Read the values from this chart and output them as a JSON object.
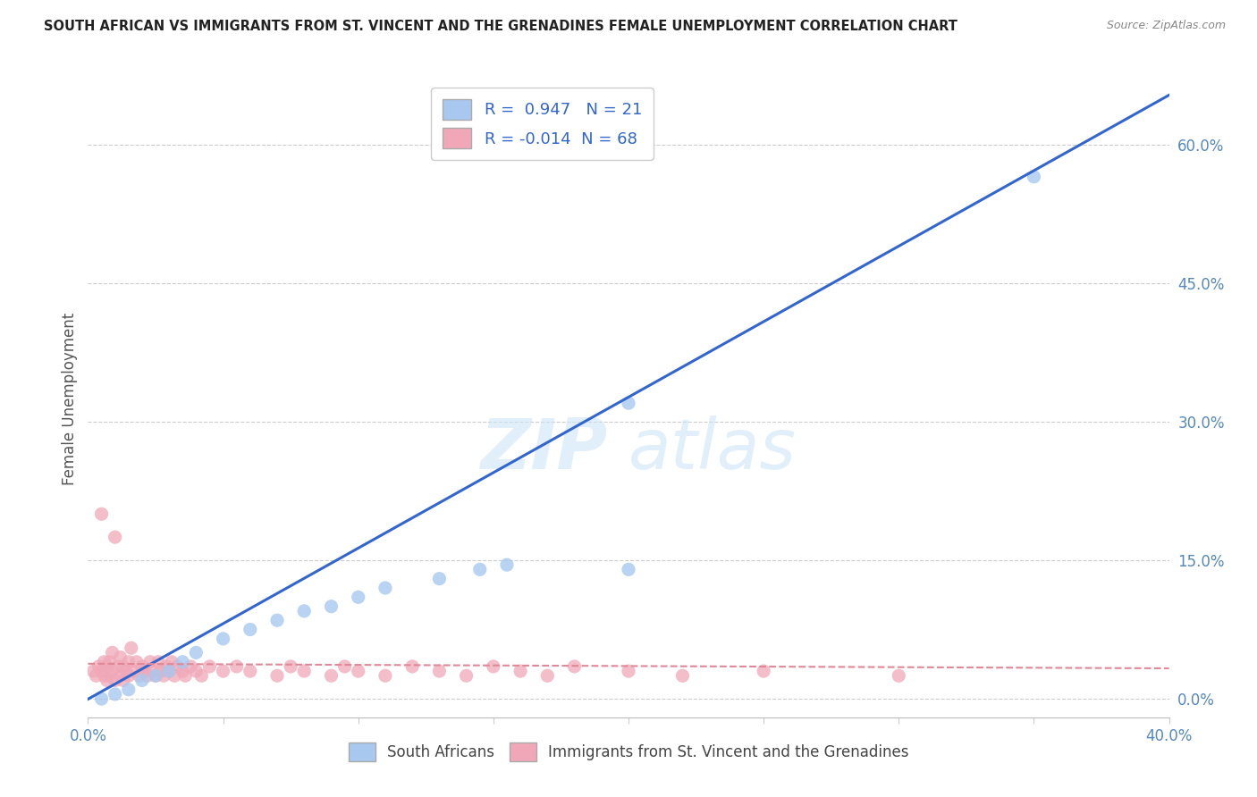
{
  "title": "SOUTH AFRICAN VS IMMIGRANTS FROM ST. VINCENT AND THE GRENADINES FEMALE UNEMPLOYMENT CORRELATION CHART",
  "source": "Source: ZipAtlas.com",
  "ylabel": "Female Unemployment",
  "xlim": [
    0.0,
    0.4
  ],
  "ylim": [
    -0.02,
    0.67
  ],
  "ytick_right_labels": [
    "0.0%",
    "15.0%",
    "30.0%",
    "45.0%",
    "60.0%"
  ],
  "ytick_right_values": [
    0.0,
    0.15,
    0.3,
    0.45,
    0.6
  ],
  "blue_R": 0.947,
  "blue_N": 21,
  "pink_R": -0.014,
  "pink_N": 68,
  "blue_color": "#a8c8f0",
  "pink_color": "#f0a8b8",
  "blue_line_color": "#3366cc",
  "pink_line_color": "#e08898",
  "legend_label_blue": "South Africans",
  "legend_label_pink": "Immigrants from St. Vincent and the Grenadines",
  "blue_scatter_x": [
    0.005,
    0.01,
    0.015,
    0.02,
    0.025,
    0.03,
    0.035,
    0.04,
    0.05,
    0.06,
    0.07,
    0.08,
    0.09,
    0.1,
    0.11,
    0.13,
    0.145,
    0.155,
    0.2,
    0.2,
    0.35
  ],
  "blue_scatter_y": [
    0.0,
    0.005,
    0.01,
    0.02,
    0.025,
    0.03,
    0.04,
    0.05,
    0.065,
    0.075,
    0.085,
    0.095,
    0.1,
    0.11,
    0.12,
    0.13,
    0.14,
    0.145,
    0.14,
    0.32,
    0.565
  ],
  "pink_scatter_x": [
    0.002,
    0.003,
    0.004,
    0.005,
    0.005,
    0.006,
    0.006,
    0.007,
    0.007,
    0.008,
    0.008,
    0.009,
    0.009,
    0.01,
    0.01,
    0.011,
    0.012,
    0.012,
    0.013,
    0.013,
    0.014,
    0.015,
    0.015,
    0.016,
    0.017,
    0.018,
    0.019,
    0.02,
    0.021,
    0.022,
    0.023,
    0.024,
    0.025,
    0.026,
    0.027,
    0.028,
    0.029,
    0.03,
    0.031,
    0.032,
    0.033,
    0.035,
    0.036,
    0.038,
    0.04,
    0.042,
    0.045,
    0.05,
    0.055,
    0.06,
    0.07,
    0.075,
    0.08,
    0.09,
    0.095,
    0.1,
    0.11,
    0.12,
    0.13,
    0.14,
    0.15,
    0.16,
    0.17,
    0.18,
    0.2,
    0.22,
    0.25,
    0.3
  ],
  "pink_scatter_y": [
    0.03,
    0.025,
    0.035,
    0.03,
    0.2,
    0.025,
    0.04,
    0.02,
    0.035,
    0.025,
    0.04,
    0.03,
    0.05,
    0.02,
    0.175,
    0.035,
    0.025,
    0.045,
    0.02,
    0.035,
    0.03,
    0.025,
    0.04,
    0.055,
    0.03,
    0.04,
    0.025,
    0.035,
    0.03,
    0.025,
    0.04,
    0.03,
    0.025,
    0.04,
    0.03,
    0.025,
    0.035,
    0.03,
    0.04,
    0.025,
    0.035,
    0.03,
    0.025,
    0.035,
    0.03,
    0.025,
    0.035,
    0.03,
    0.035,
    0.03,
    0.025,
    0.035,
    0.03,
    0.025,
    0.035,
    0.03,
    0.025,
    0.035,
    0.03,
    0.025,
    0.035,
    0.03,
    0.025,
    0.035,
    0.03,
    0.025,
    0.03,
    0.025
  ],
  "blue_line_x": [
    -0.02,
    0.42
  ],
  "blue_line_y": [
    -0.033,
    0.686
  ],
  "pink_line_x": [
    0.0,
    0.4
  ],
  "pink_line_y": [
    0.038,
    0.033
  ]
}
